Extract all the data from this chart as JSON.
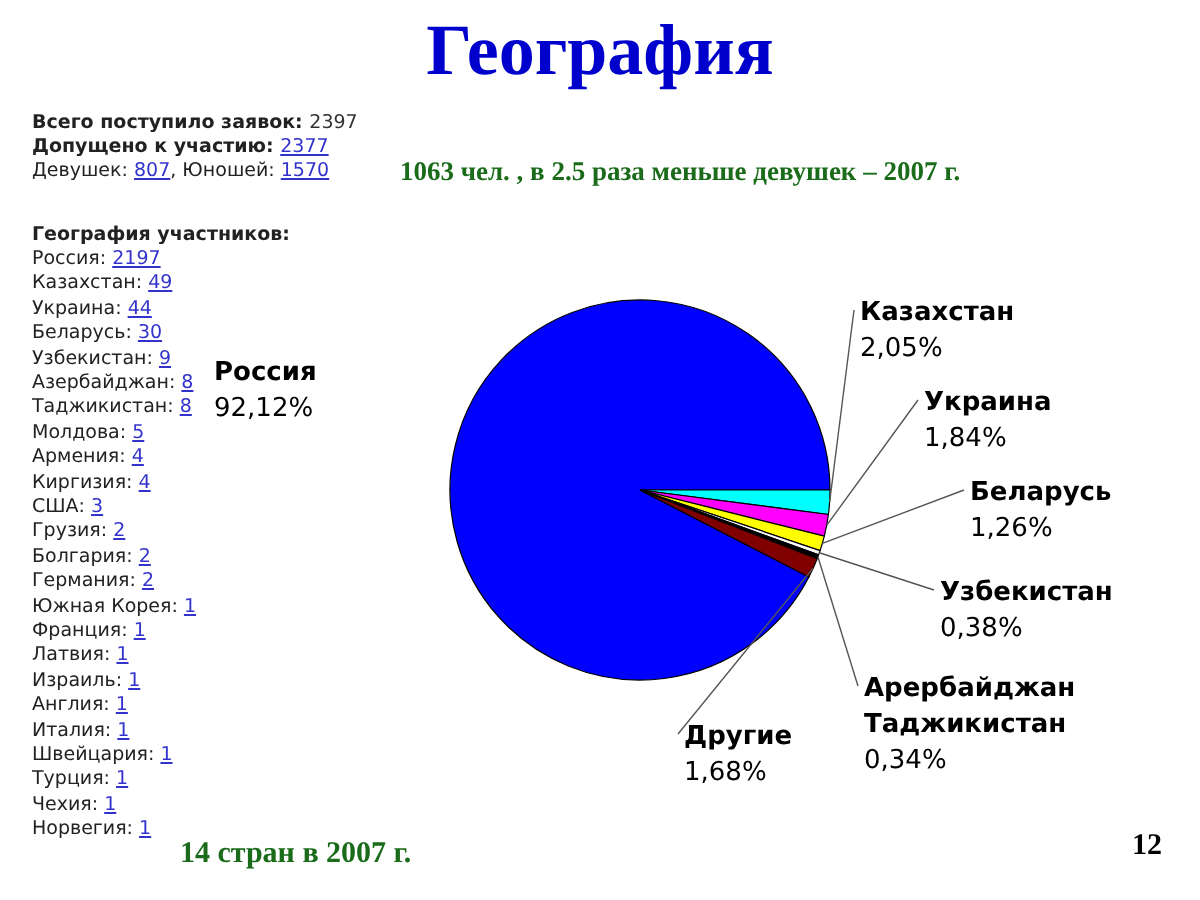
{
  "chart_data": {
    "type": "pie",
    "title": "География",
    "categories": [
      "Россия",
      "Казахстан",
      "Украина",
      "Беларусь",
      "Узбекистан",
      "Арербайджан\nТаджикистан",
      "Другие"
    ],
    "values": [
      92.12,
      2.05,
      1.84,
      1.26,
      0.38,
      0.34,
      1.68
    ],
    "colors": [
      "#0000ff",
      "#00ffff",
      "#ff00ff",
      "#ffff00",
      "#ffffff",
      "#000000",
      "#800000"
    ],
    "value_labels": [
      "92,12%",
      "2,05%",
      "1,84%",
      "1,26%",
      "0,38%",
      "0,34%",
      "1,68%"
    ],
    "data_labels": true,
    "legend": false,
    "annotations": [
      "Всего поступило заявок: 2397",
      "Допущено к участию: 2377",
      "Девушек: 807, Юношей: 1570",
      "География участников:",
      "Россия: 2197",
      "Казахстан: 49",
      "Украина: 44",
      "Беларусь: 30",
      "Узбекистан: 9",
      "Азербайджан: 8",
      "Таджикистан: 8",
      "Молдова: 5",
      "Армения: 4",
      "Киргизия: 4",
      "США: 3",
      "Грузия: 2",
      "Болгария: 2",
      "Германия: 2",
      "Южная Корея: 1",
      "Франция: 1",
      "Латвия: 1",
      "Израиль: 1",
      "Англия: 1",
      "Италия: 1",
      "Швейцария: 1",
      "Турция: 1",
      "Чехия: 1",
      "Норвегия: 1",
      "1063 чел. , в 2.5 раза меньше девушек – 2007 г.",
      "14 стран в 2007 г.",
      "12"
    ]
  }
}
